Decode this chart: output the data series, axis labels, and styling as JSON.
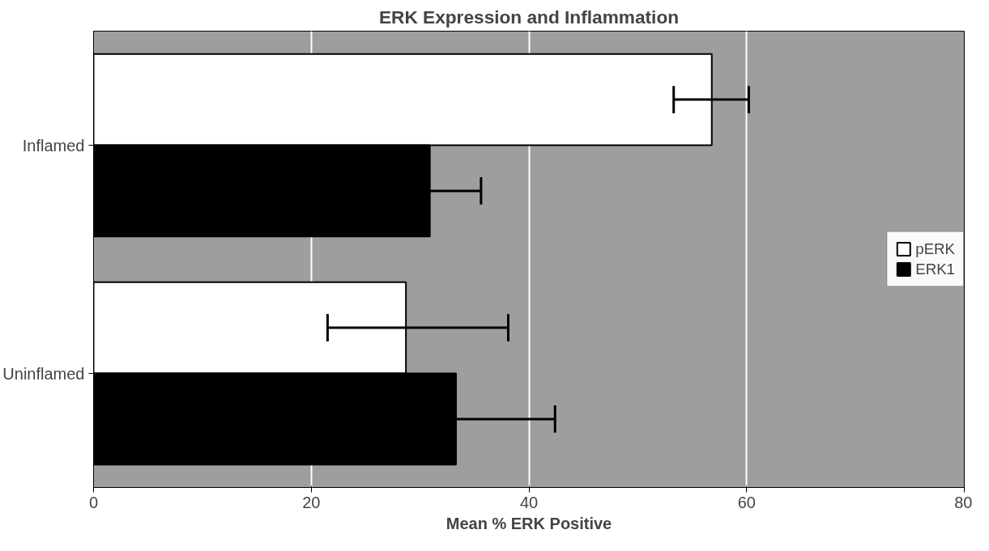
{
  "chart_data": {
    "type": "bar",
    "orientation": "horizontal",
    "title": "ERK Expression and Inflammation",
    "xlabel": "Mean % ERK Positive",
    "categories": [
      "Inflamed",
      "Uninflamed"
    ],
    "series": [
      {
        "name": "pERK",
        "color": "#ffffff",
        "values": [
          56.8,
          28.7
        ],
        "errors": [
          [
            53.3,
            60.2
          ],
          [
            21.5,
            38.1
          ]
        ]
      },
      {
        "name": "ERK1",
        "color": "#000000",
        "values": [
          30.9,
          33.3
        ],
        "errors": [
          4.7,
          9.1
        ]
      }
    ],
    "xlim": [
      0,
      80
    ],
    "xticks": [
      0,
      20,
      40,
      60,
      80
    ],
    "grid": "x",
    "legend": "right"
  }
}
